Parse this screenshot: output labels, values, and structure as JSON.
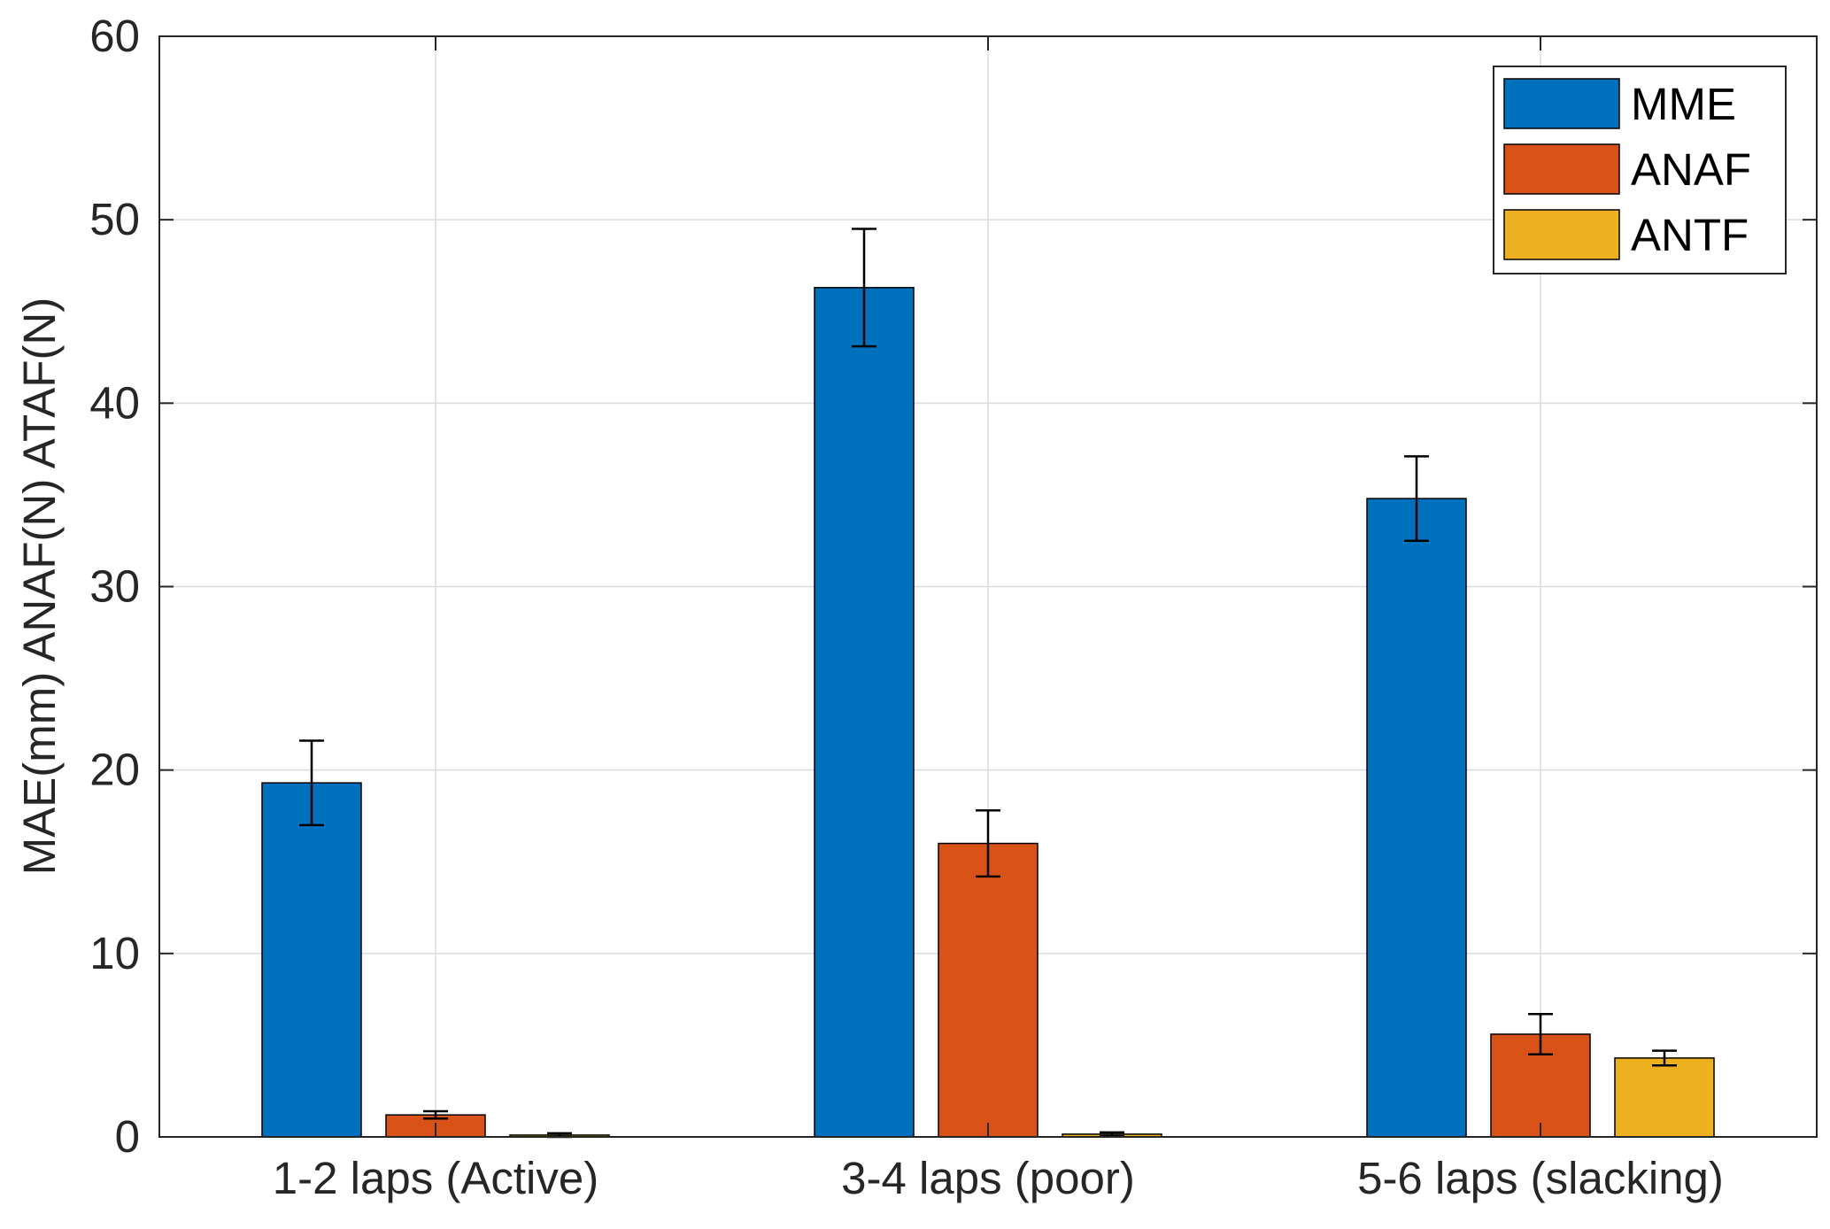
{
  "chart_data": {
    "type": "bar",
    "title": "",
    "xlabel": "",
    "ylabel": "MAE(mm) ANAF(N) ATAF(N)",
    "categories": [
      "1-2 laps (Active)",
      "3-4 laps (poor)",
      "5-6 laps (slacking)"
    ],
    "ylim": [
      0,
      60
    ],
    "yticks": [
      0,
      10,
      20,
      30,
      40,
      50,
      60
    ],
    "grid": true,
    "legend_position": "top-right",
    "series": [
      {
        "name": "MME",
        "color": "#0072BD",
        "values": [
          19.3,
          46.3,
          34.8
        ],
        "error": [
          2.3,
          3.2,
          2.3
        ]
      },
      {
        "name": "ANAF",
        "color": "#D95319",
        "values": [
          1.2,
          16.0,
          5.6
        ],
        "error": [
          0.2,
          1.8,
          1.1
        ]
      },
      {
        "name": "ANTF",
        "color": "#EDB120",
        "values": [
          0.1,
          0.15,
          4.3
        ],
        "error": [
          0.1,
          0.1,
          0.4
        ]
      }
    ]
  }
}
